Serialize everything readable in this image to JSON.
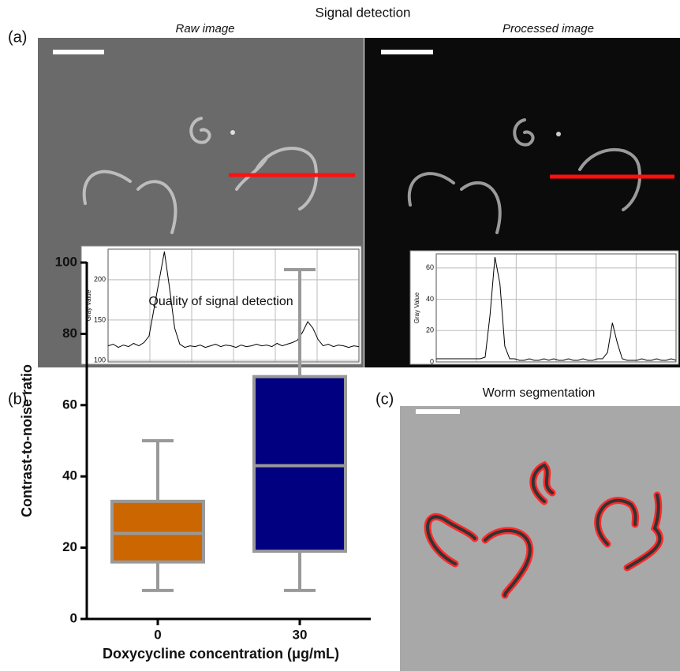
{
  "figure_title": "Signal detection",
  "panel_labels": [
    "(a)",
    "(b)",
    "(c)"
  ],
  "image_titles": [
    "Raw image",
    "Processed image",
    "Worm segmentation"
  ],
  "chart_data": [
    {
      "type": "line",
      "y_label": "Gray Value",
      "ylim": [
        98,
        238
      ],
      "yticks": [
        100,
        150,
        200
      ],
      "grid": true,
      "color": "#000000",
      "values": [
        118,
        120,
        116,
        119,
        117,
        121,
        118,
        122,
        130,
        165,
        200,
        235,
        190,
        140,
        120,
        116,
        118,
        117,
        119,
        116,
        118,
        120,
        117,
        119,
        118,
        116,
        119,
        117,
        118,
        120,
        118,
        119,
        117,
        121,
        118,
        120,
        122,
        125,
        135,
        148,
        140,
        126,
        118,
        120,
        117,
        119,
        118,
        116,
        118,
        117
      ]
    },
    {
      "type": "line",
      "y_label": "Gray Value",
      "ylim": [
        0,
        69
      ],
      "yticks": [
        0,
        20,
        40,
        60
      ],
      "grid": true,
      "color": "#000000",
      "values": [
        2,
        2,
        2,
        2,
        2,
        2,
        2,
        2,
        2,
        2,
        3,
        30,
        67,
        50,
        10,
        2,
        2,
        1,
        1,
        2,
        1,
        1,
        2,
        1,
        2,
        1,
        1,
        2,
        1,
        1,
        2,
        1,
        1,
        2,
        2,
        6,
        25,
        12,
        2,
        1,
        1,
        1,
        2,
        1,
        1,
        2,
        1,
        1,
        2,
        1
      ]
    },
    {
      "type": "box",
      "title": "Quality of signal detection",
      "x_label": "Doxycycline concentration (μg/mL)",
      "y_label": "Contrast-to-noise ratio",
      "categories": [
        "0",
        "30"
      ],
      "colors": [
        "#cc6600",
        "#000080"
      ],
      "min": [
        8,
        8
      ],
      "q1": [
        16,
        19
      ],
      "median": [
        24,
        43
      ],
      "q3": [
        33,
        68
      ],
      "max": [
        50,
        98
      ],
      "ylim": [
        0,
        100
      ],
      "yticks": [
        0,
        20,
        40,
        60,
        80,
        100
      ]
    }
  ]
}
